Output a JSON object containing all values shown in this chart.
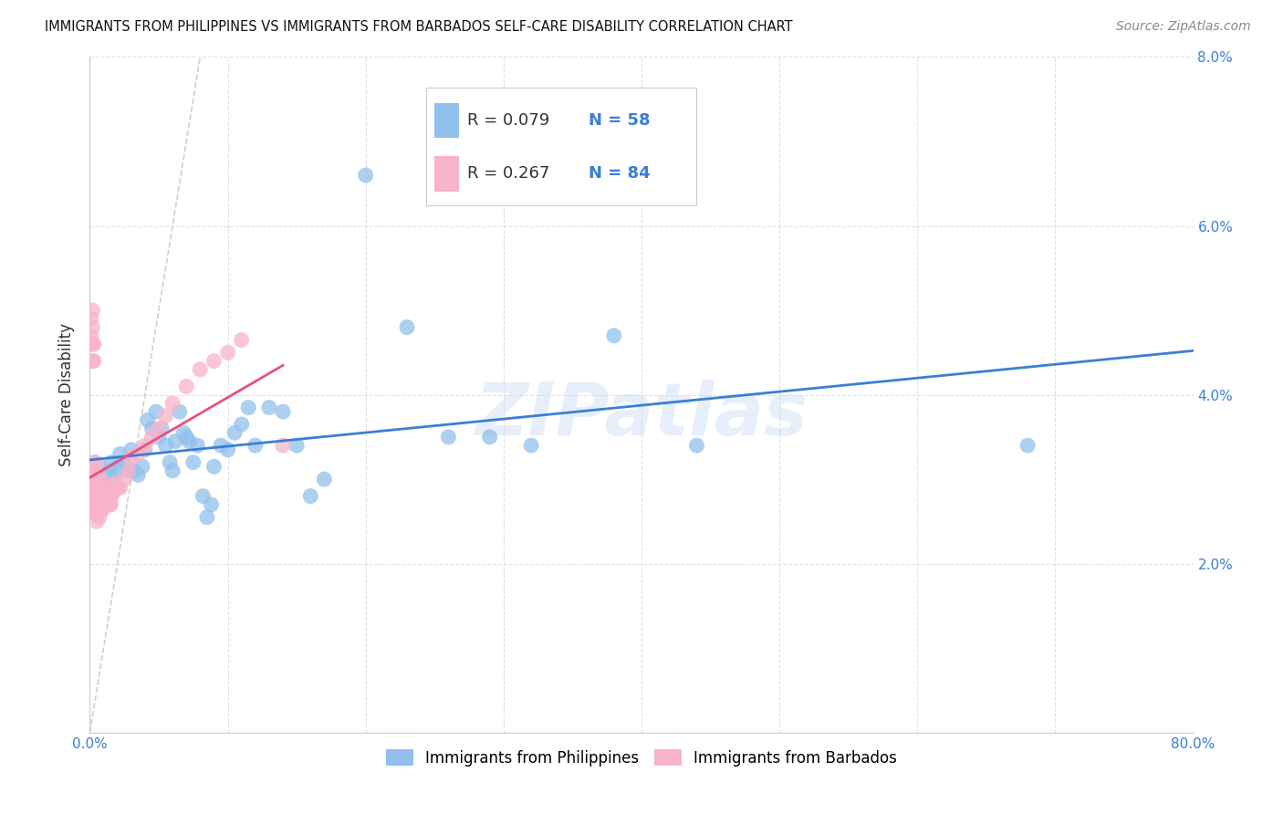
{
  "title": "IMMIGRANTS FROM PHILIPPINES VS IMMIGRANTS FROM BARBADOS SELF-CARE DISABILITY CORRELATION CHART",
  "source": "Source: ZipAtlas.com",
  "ylabel": "Self-Care Disability",
  "xlim": [
    0,
    0.8
  ],
  "ylim": [
    0,
    0.08
  ],
  "xticks": [
    0.0,
    0.1,
    0.2,
    0.3,
    0.4,
    0.5,
    0.6,
    0.7,
    0.8
  ],
  "yticks": [
    0.0,
    0.02,
    0.04,
    0.06,
    0.08
  ],
  "ytick_labels_right": [
    "",
    "2.0%",
    "4.0%",
    "6.0%",
    "8.0%"
  ],
  "xtick_labels_show": {
    "0": "0.0%",
    "8": "80.0%"
  },
  "legend_labels_bottom": [
    "Immigrants from Philippines",
    "Immigrants from Barbados"
  ],
  "r_philippines": 0.079,
  "n_philippines": 58,
  "r_barbados": 0.267,
  "n_barbados": 84,
  "color_philippines": "#92c0ec",
  "color_barbados": "#f8b4c8",
  "color_philippines_line": "#3a7fd5",
  "color_barbados_line": "#e8507a",
  "color_diagonal": "#d0d0d0",
  "watermark": "ZIPatlas",
  "philippines_x": [
    0.003,
    0.005,
    0.006,
    0.007,
    0.009,
    0.01,
    0.011,
    0.013,
    0.015,
    0.016,
    0.018,
    0.02,
    0.022,
    0.025,
    0.027,
    0.03,
    0.032,
    0.035,
    0.038,
    0.04,
    0.042,
    0.045,
    0.048,
    0.05,
    0.052,
    0.055,
    0.058,
    0.06,
    0.062,
    0.065,
    0.068,
    0.07,
    0.072,
    0.075,
    0.078,
    0.082,
    0.085,
    0.088,
    0.09,
    0.095,
    0.1,
    0.105,
    0.11,
    0.115,
    0.12,
    0.13,
    0.14,
    0.15,
    0.16,
    0.17,
    0.2,
    0.23,
    0.26,
    0.29,
    0.32,
    0.38,
    0.44,
    0.68
  ],
  "philippines_y": [
    0.031,
    0.029,
    0.03,
    0.0315,
    0.028,
    0.0295,
    0.0305,
    0.029,
    0.031,
    0.032,
    0.03,
    0.0315,
    0.033,
    0.032,
    0.031,
    0.0335,
    0.031,
    0.0305,
    0.0315,
    0.0335,
    0.037,
    0.036,
    0.038,
    0.035,
    0.036,
    0.034,
    0.032,
    0.031,
    0.0345,
    0.038,
    0.0355,
    0.035,
    0.0345,
    0.032,
    0.034,
    0.028,
    0.0255,
    0.027,
    0.0315,
    0.034,
    0.0335,
    0.0355,
    0.0365,
    0.0385,
    0.034,
    0.0385,
    0.038,
    0.034,
    0.028,
    0.03,
    0.066,
    0.048,
    0.035,
    0.035,
    0.034,
    0.047,
    0.034,
    0.034
  ],
  "barbados_x": [
    0.001,
    0.001,
    0.001,
    0.002,
    0.002,
    0.002,
    0.002,
    0.002,
    0.002,
    0.003,
    0.003,
    0.003,
    0.003,
    0.003,
    0.003,
    0.003,
    0.004,
    0.004,
    0.004,
    0.004,
    0.004,
    0.004,
    0.004,
    0.005,
    0.005,
    0.005,
    0.005,
    0.005,
    0.005,
    0.005,
    0.005,
    0.006,
    0.006,
    0.006,
    0.006,
    0.006,
    0.007,
    0.007,
    0.007,
    0.007,
    0.007,
    0.007,
    0.007,
    0.008,
    0.008,
    0.008,
    0.008,
    0.009,
    0.009,
    0.009,
    0.01,
    0.01,
    0.01,
    0.01,
    0.011,
    0.011,
    0.012,
    0.012,
    0.013,
    0.013,
    0.014,
    0.015,
    0.015,
    0.016,
    0.017,
    0.018,
    0.02,
    0.021,
    0.022,
    0.025,
    0.028,
    0.03,
    0.035,
    0.04,
    0.045,
    0.05,
    0.055,
    0.06,
    0.07,
    0.08,
    0.09,
    0.1,
    0.11,
    0.14
  ],
  "barbados_y": [
    0.049,
    0.047,
    0.046,
    0.05,
    0.048,
    0.046,
    0.044,
    0.03,
    0.029,
    0.046,
    0.044,
    0.032,
    0.03,
    0.028,
    0.026,
    0.029,
    0.032,
    0.03,
    0.028,
    0.026,
    0.028,
    0.031,
    0.029,
    0.031,
    0.029,
    0.027,
    0.026,
    0.025,
    0.029,
    0.03,
    0.028,
    0.0285,
    0.027,
    0.0265,
    0.028,
    0.0295,
    0.028,
    0.0275,
    0.0265,
    0.0255,
    0.029,
    0.03,
    0.027,
    0.0285,
    0.027,
    0.0265,
    0.03,
    0.028,
    0.0275,
    0.0285,
    0.027,
    0.0265,
    0.028,
    0.029,
    0.027,
    0.0285,
    0.0275,
    0.0285,
    0.0275,
    0.0285,
    0.0275,
    0.027,
    0.027,
    0.028,
    0.0285,
    0.0295,
    0.029,
    0.029,
    0.029,
    0.03,
    0.031,
    0.0325,
    0.033,
    0.034,
    0.035,
    0.036,
    0.0375,
    0.039,
    0.041,
    0.043,
    0.044,
    0.045,
    0.0465,
    0.034
  ],
  "background_color": "#ffffff",
  "grid_color": "#e0e0e0"
}
